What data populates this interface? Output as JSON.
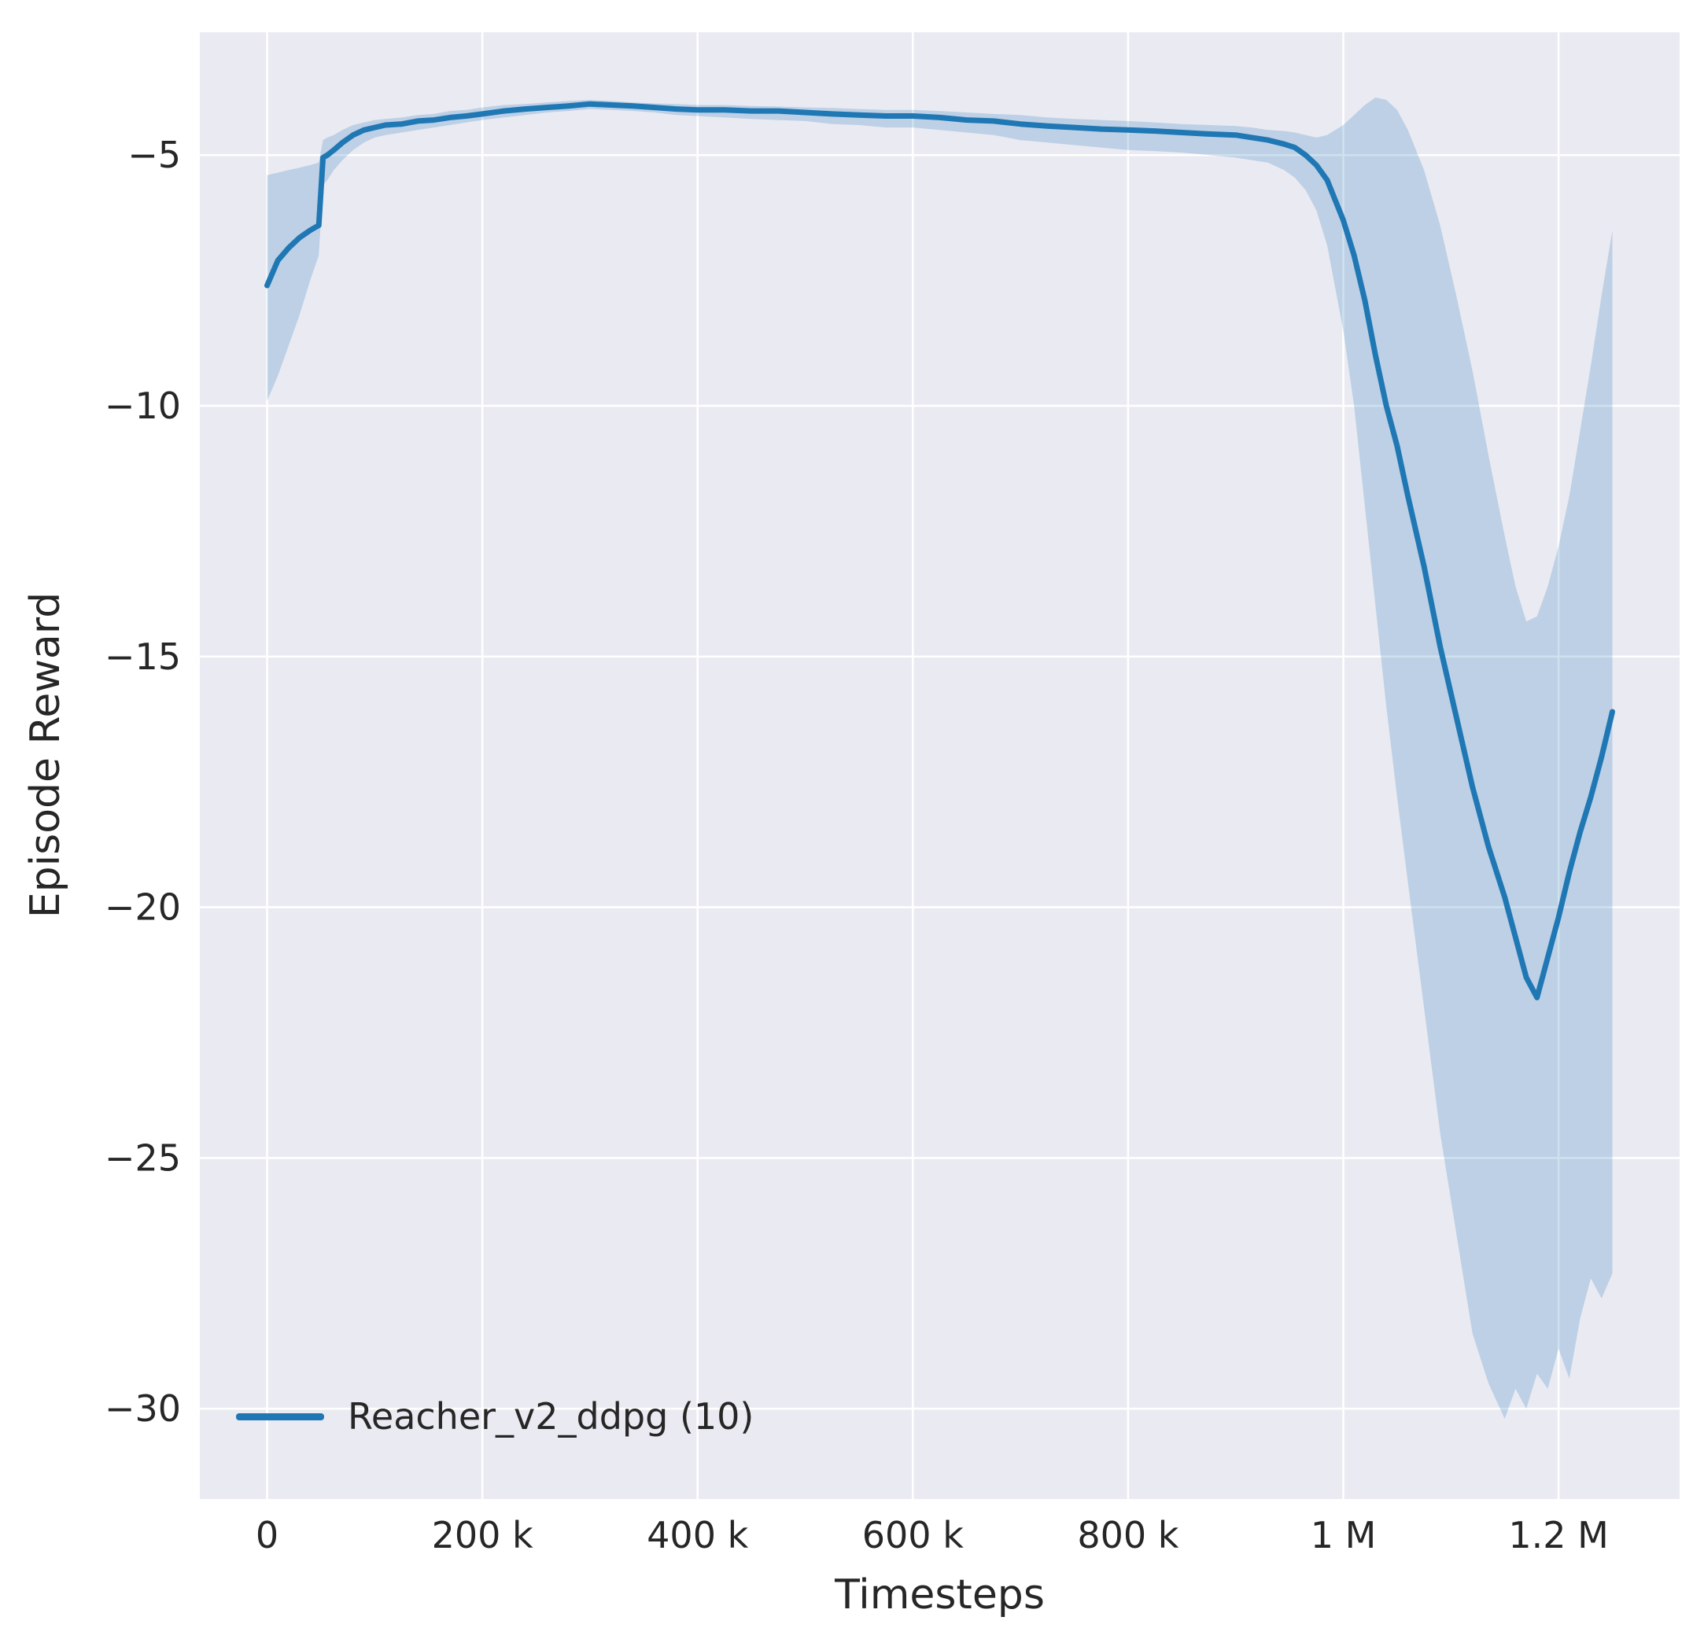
{
  "chart_data": {
    "type": "line",
    "title": "",
    "xlabel": "Timesteps",
    "ylabel": "Episode Reward",
    "xlim": [
      -62500,
      1312500
    ],
    "ylim": [
      -31.8,
      -2.55
    ],
    "grid": true,
    "legend_position": "lower left",
    "x_ticks": {
      "values": [
        0,
        200000,
        400000,
        600000,
        800000,
        1000000,
        1200000
      ],
      "labels": [
        "0",
        "200 k",
        "400 k",
        "600 k",
        "800 k",
        "1 M",
        "1.2 M"
      ]
    },
    "y_ticks": {
      "values": [
        -5,
        -10,
        -15,
        -20,
        -25,
        -30
      ],
      "labels": [
        "−5",
        "−10",
        "−15",
        "−20",
        "−25",
        "−30"
      ]
    },
    "colors": {
      "line": "#1f77b4",
      "band": "#1f77b4",
      "band_opacity": 0.22,
      "plot_bg": "#eaeaf2",
      "grid": "#ffffff",
      "text": "#262626"
    },
    "series": [
      {
        "name": "Reacher_v2_ddpg (10)",
        "x": [
          0,
          10000,
          20000,
          30000,
          40000,
          48000,
          52000,
          56000,
          62000,
          70000,
          80000,
          90000,
          100000,
          110000,
          125000,
          140000,
          155000,
          170000,
          185000,
          200000,
          220000,
          240000,
          260000,
          280000,
          300000,
          320000,
          340000,
          360000,
          380000,
          400000,
          425000,
          450000,
          475000,
          500000,
          525000,
          550000,
          575000,
          600000,
          625000,
          650000,
          675000,
          700000,
          725000,
          750000,
          775000,
          800000,
          825000,
          850000,
          875000,
          900000,
          915000,
          930000,
          945000,
          955000,
          965000,
          975000,
          985000,
          1000000,
          1010000,
          1020000,
          1030000,
          1040000,
          1050000,
          1060000,
          1075000,
          1090000,
          1105000,
          1120000,
          1135000,
          1150000,
          1160000,
          1170000,
          1180000,
          1190000,
          1200000,
          1210000,
          1220000,
          1230000,
          1240000,
          1250000
        ],
        "mean": [
          -7.6,
          -7.1,
          -6.85,
          -6.65,
          -6.5,
          -6.4,
          -5.05,
          -5.0,
          -4.9,
          -4.75,
          -4.6,
          -4.5,
          -4.45,
          -4.4,
          -4.38,
          -4.32,
          -4.3,
          -4.25,
          -4.22,
          -4.18,
          -4.12,
          -4.08,
          -4.05,
          -4.02,
          -3.98,
          -4.0,
          -4.02,
          -4.05,
          -4.08,
          -4.1,
          -4.1,
          -4.12,
          -4.12,
          -4.15,
          -4.18,
          -4.2,
          -4.22,
          -4.22,
          -4.25,
          -4.3,
          -4.32,
          -4.38,
          -4.42,
          -4.45,
          -4.48,
          -4.5,
          -4.52,
          -4.55,
          -4.58,
          -4.6,
          -4.65,
          -4.7,
          -4.78,
          -4.85,
          -5.0,
          -5.2,
          -5.5,
          -6.3,
          -7.0,
          -7.9,
          -9.0,
          -10.0,
          -10.8,
          -11.8,
          -13.2,
          -14.8,
          -16.2,
          -17.6,
          -18.8,
          -19.8,
          -20.6,
          -21.4,
          -21.8,
          -21.0,
          -20.2,
          -19.3,
          -18.5,
          -17.8,
          -17.0,
          -16.1
        ],
        "lower": [
          -9.9,
          -9.4,
          -8.8,
          -8.2,
          -7.5,
          -7.0,
          -5.6,
          -5.5,
          -5.3,
          -5.1,
          -4.9,
          -4.75,
          -4.65,
          -4.6,
          -4.55,
          -4.5,
          -4.45,
          -4.4,
          -4.35,
          -4.3,
          -4.25,
          -4.2,
          -4.15,
          -4.12,
          -4.08,
          -4.1,
          -4.12,
          -4.15,
          -4.2,
          -4.22,
          -4.25,
          -4.28,
          -4.3,
          -4.32,
          -4.38,
          -4.4,
          -4.45,
          -4.45,
          -4.5,
          -4.55,
          -4.6,
          -4.7,
          -4.75,
          -4.8,
          -4.85,
          -4.9,
          -4.92,
          -4.95,
          -5.0,
          -5.05,
          -5.1,
          -5.15,
          -5.3,
          -5.45,
          -5.7,
          -6.1,
          -6.8,
          -8.5,
          -10.0,
          -12.0,
          -14.0,
          -16.0,
          -17.8,
          -19.5,
          -22.0,
          -24.5,
          -26.5,
          -28.5,
          -29.5,
          -30.2,
          -29.6,
          -30.0,
          -29.3,
          -29.6,
          -28.8,
          -29.4,
          -28.2,
          -27.4,
          -27.8,
          -27.3
        ],
        "upper": [
          -5.4,
          -5.35,
          -5.3,
          -5.25,
          -5.2,
          -5.15,
          -4.7,
          -4.65,
          -4.6,
          -4.5,
          -4.4,
          -4.35,
          -4.3,
          -4.28,
          -4.25,
          -4.2,
          -4.18,
          -4.12,
          -4.1,
          -4.05,
          -4.0,
          -3.98,
          -3.95,
          -3.92,
          -3.9,
          -3.92,
          -3.95,
          -3.97,
          -3.98,
          -4.0,
          -4.0,
          -4.02,
          -4.03,
          -4.05,
          -4.06,
          -4.08,
          -4.1,
          -4.1,
          -4.12,
          -4.15,
          -4.18,
          -4.2,
          -4.25,
          -4.28,
          -4.3,
          -4.32,
          -4.35,
          -4.38,
          -4.4,
          -4.42,
          -4.45,
          -4.5,
          -4.52,
          -4.55,
          -4.6,
          -4.65,
          -4.6,
          -4.4,
          -4.2,
          -4.0,
          -3.85,
          -3.9,
          -4.1,
          -4.5,
          -5.3,
          -6.4,
          -7.8,
          -9.3,
          -11.0,
          -12.6,
          -13.6,
          -14.3,
          -14.2,
          -13.6,
          -12.8,
          -11.8,
          -10.5,
          -9.2,
          -7.8,
          -6.5
        ]
      }
    ]
  }
}
